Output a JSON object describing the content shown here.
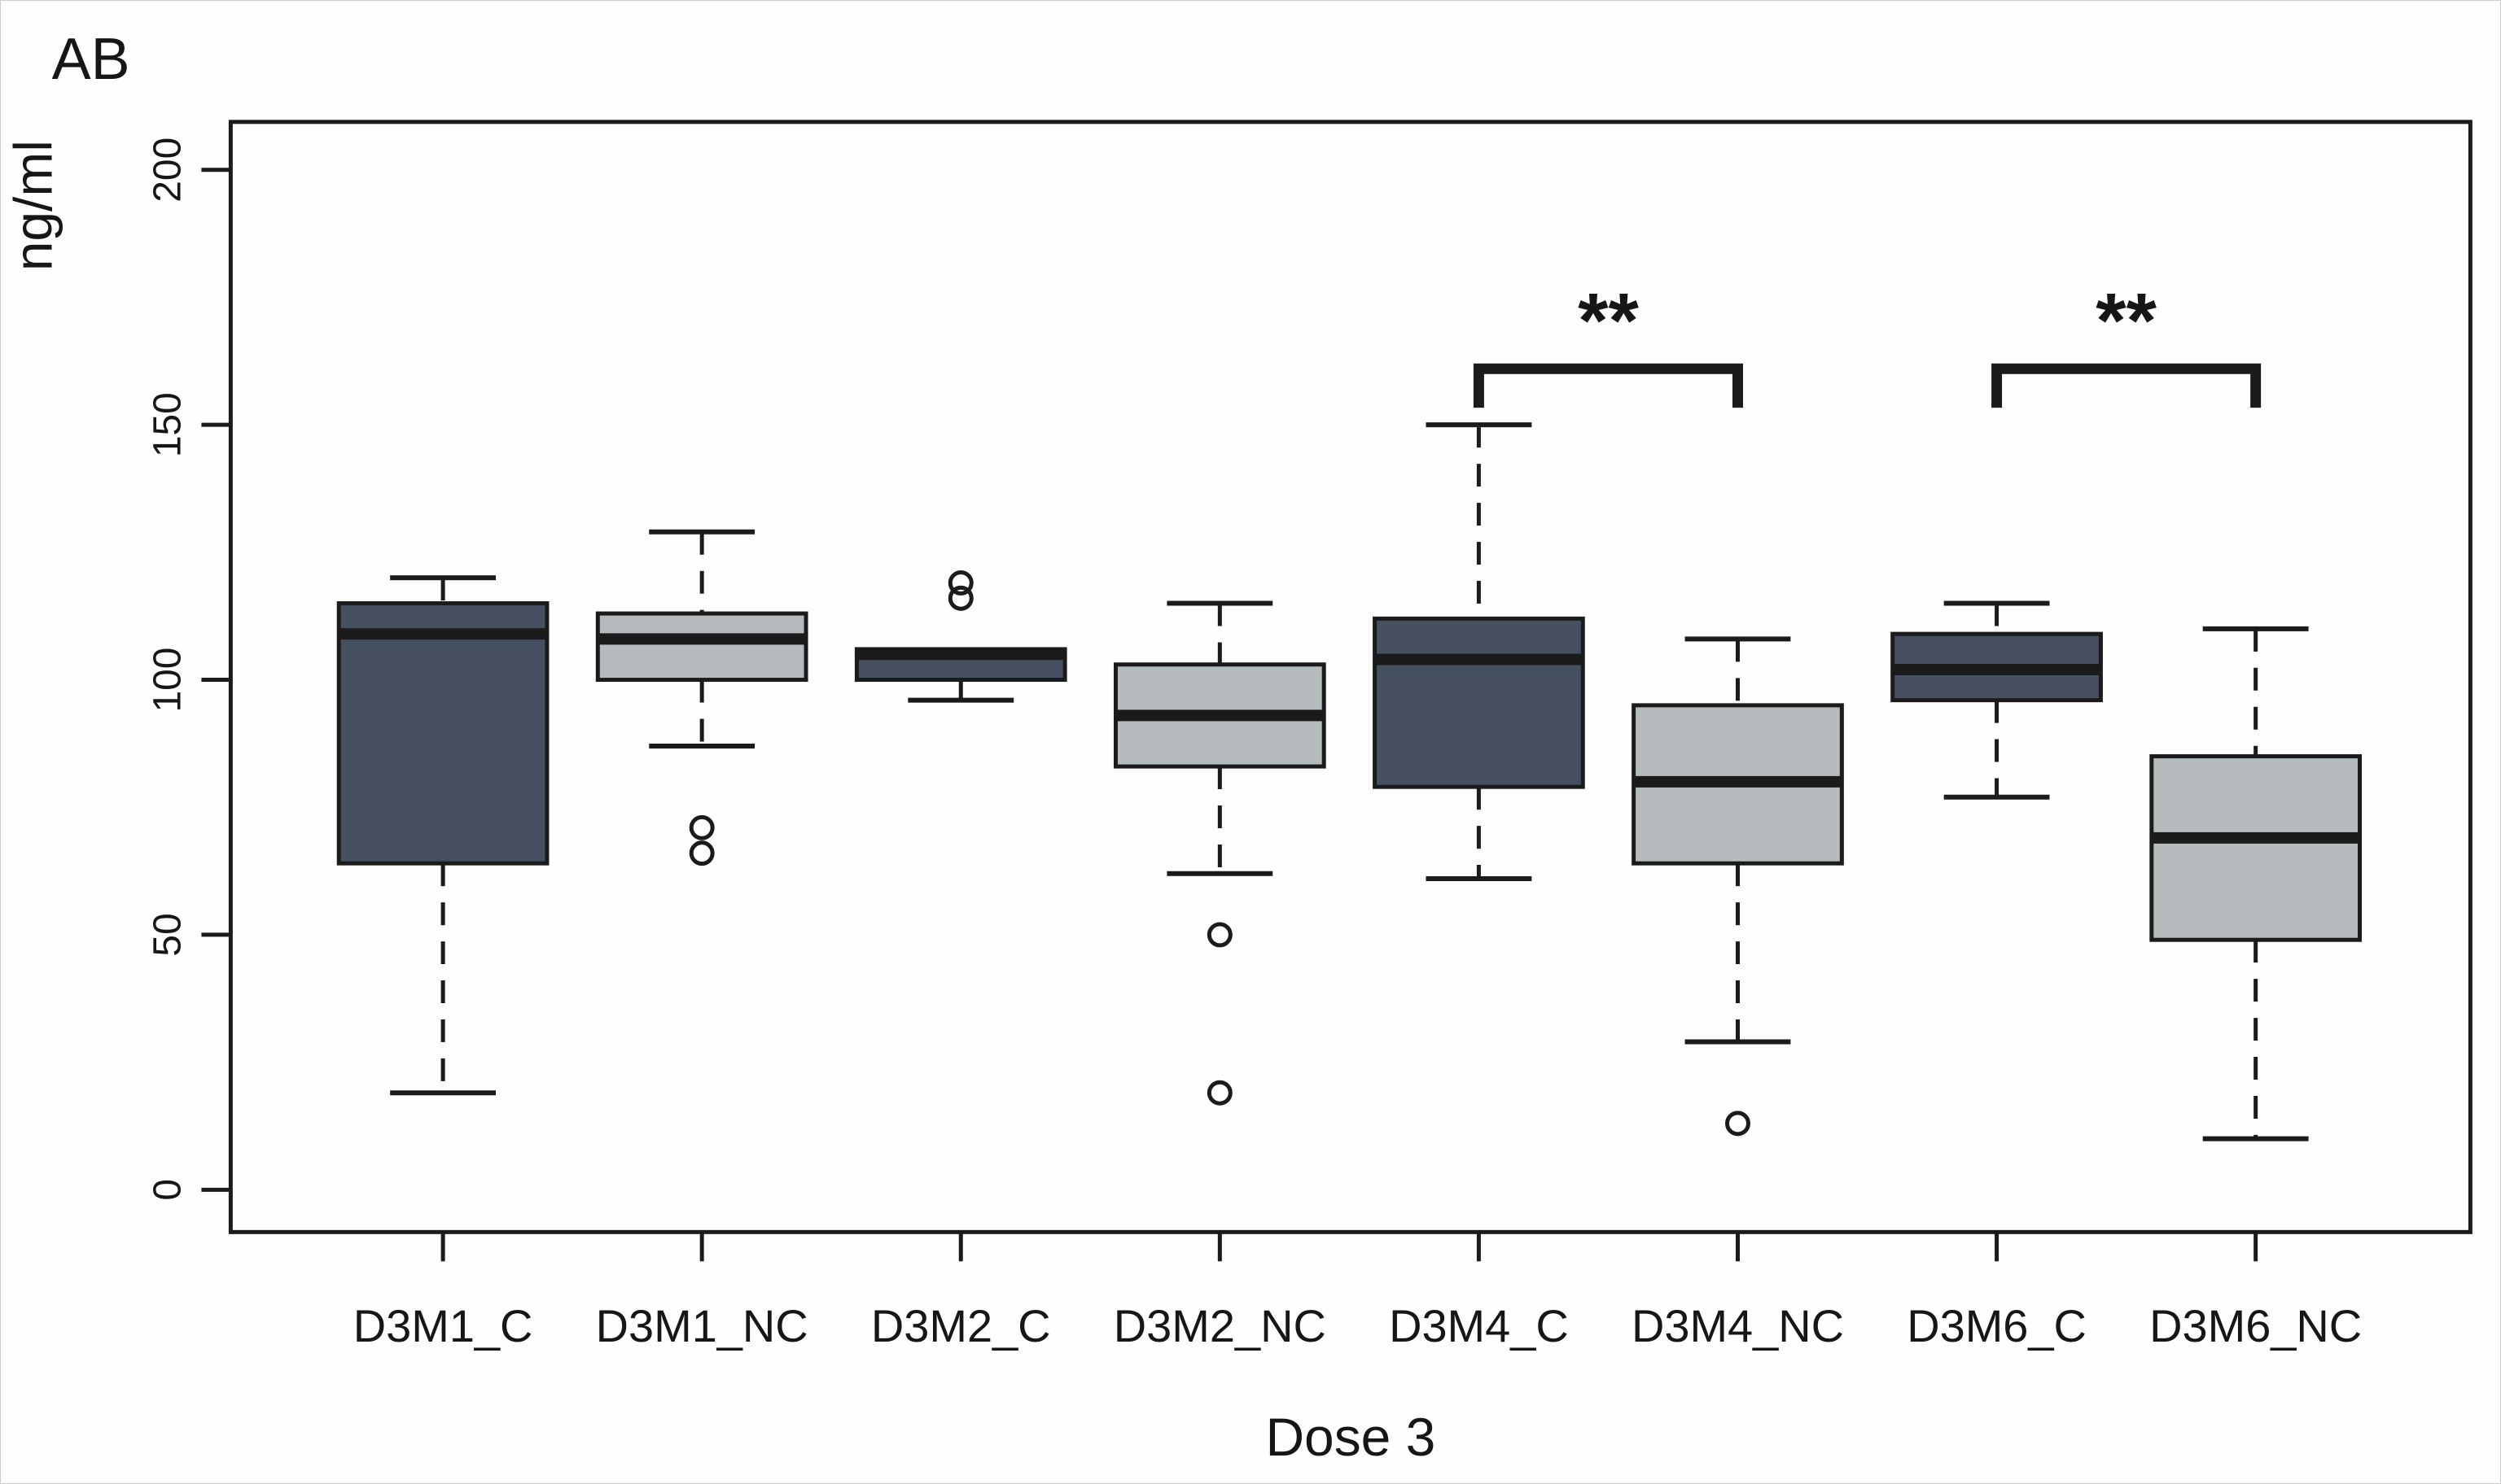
{
  "title": "AB",
  "y_axis": {
    "label": "ng/ml",
    "ticks": [
      0,
      50,
      100,
      150,
      200
    ]
  },
  "x_axis": {
    "label": "Dose 3"
  },
  "colors": {
    "control_fill": "#475060",
    "noncontrol_fill": "#b5babc",
    "line": "#1b1b1b",
    "background": "#fefefe"
  },
  "chart_data": {
    "type": "boxplot",
    "title": "AB",
    "ylabel": "ng/ml",
    "xlabel": "Dose 3",
    "unit": "ng/ml",
    "ylim": [
      -8.3,
      209.4
    ],
    "yticks": [
      0,
      50,
      100,
      150,
      200
    ],
    "grid": false,
    "categories": [
      "D3M1_C",
      "D3M1_NC",
      "D3M2_C",
      "D3M2_NC",
      "D3M4_C",
      "D3M4_NC",
      "D3M6_C",
      "D3M6_NC"
    ],
    "series": [
      {
        "label": "D3M1_C",
        "group": "control",
        "whisker_low": 19,
        "q1": 64,
        "median": 109,
        "q3": 115,
        "whisker_high": 120,
        "outliers": []
      },
      {
        "label": "D3M1_NC",
        "group": "noncontrol",
        "whisker_low": 87,
        "q1": 100,
        "median": 108,
        "q3": 113,
        "whisker_high": 129,
        "outliers": [
          71,
          66
        ]
      },
      {
        "label": "D3M2_C",
        "group": "control",
        "whisker_low": 96,
        "q1": 100,
        "median": 105,
        "q3": 106,
        "whisker_high": null,
        "outliers": [
          119,
          116
        ]
      },
      {
        "label": "D3M2_NC",
        "group": "noncontrol",
        "whisker_low": 62,
        "q1": 83,
        "median": 93,
        "q3": 103,
        "whisker_high": 115,
        "outliers": [
          50,
          19
        ]
      },
      {
        "label": "D3M4_C",
        "group": "control",
        "whisker_low": 61,
        "q1": 79,
        "median": 104,
        "q3": 112,
        "whisker_high": 150,
        "outliers": []
      },
      {
        "label": "D3M4_NC",
        "group": "noncontrol",
        "whisker_low": 29,
        "q1": 64,
        "median": 80,
        "q3": 95,
        "whisker_high": 108,
        "outliers": [
          13
        ]
      },
      {
        "label": "D3M6_C",
        "group": "control",
        "whisker_low": 77,
        "q1": 96,
        "median": 102,
        "q3": 109,
        "whisker_high": 115,
        "outliers": []
      },
      {
        "label": "D3M6_NC",
        "group": "noncontrol",
        "whisker_low": 10,
        "q1": 49,
        "median": 69,
        "q3": 85,
        "whisker_high": 110,
        "outliers": []
      }
    ],
    "significance": [
      {
        "from": "D3M4_C",
        "to": "D3M4_NC",
        "from_index": 4,
        "to_index": 5,
        "label": "**",
        "bar_value": 161,
        "label_value": 170
      },
      {
        "from": "D3M6_C",
        "to": "D3M6_NC",
        "from_index": 6,
        "to_index": 7,
        "label": "**",
        "bar_value": 161,
        "label_value": 170
      }
    ],
    "legend": null
  }
}
